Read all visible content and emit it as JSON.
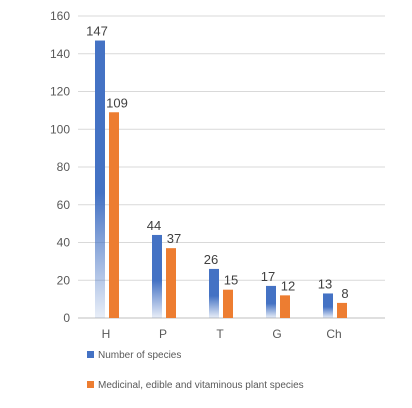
{
  "chart_data": {
    "type": "bar",
    "categories": [
      "H",
      "P",
      "T",
      "G",
      "Ch"
    ],
    "series": [
      {
        "name": "Number of species",
        "values": [
          147,
          44,
          26,
          17,
          13
        ],
        "color": "#4472C4"
      },
      {
        "name": "Medicinal, edible and vitaminous plant species",
        "values": [
          109,
          37,
          15,
          12,
          8
        ],
        "color": "#ED7D31"
      }
    ],
    "ylim": [
      0,
      160
    ],
    "yticks": [
      0,
      20,
      40,
      60,
      80,
      100,
      120,
      140,
      160
    ],
    "grid": true,
    "legend_position": "bottom-left",
    "title": "",
    "xlabel": "",
    "ylabel": ""
  }
}
